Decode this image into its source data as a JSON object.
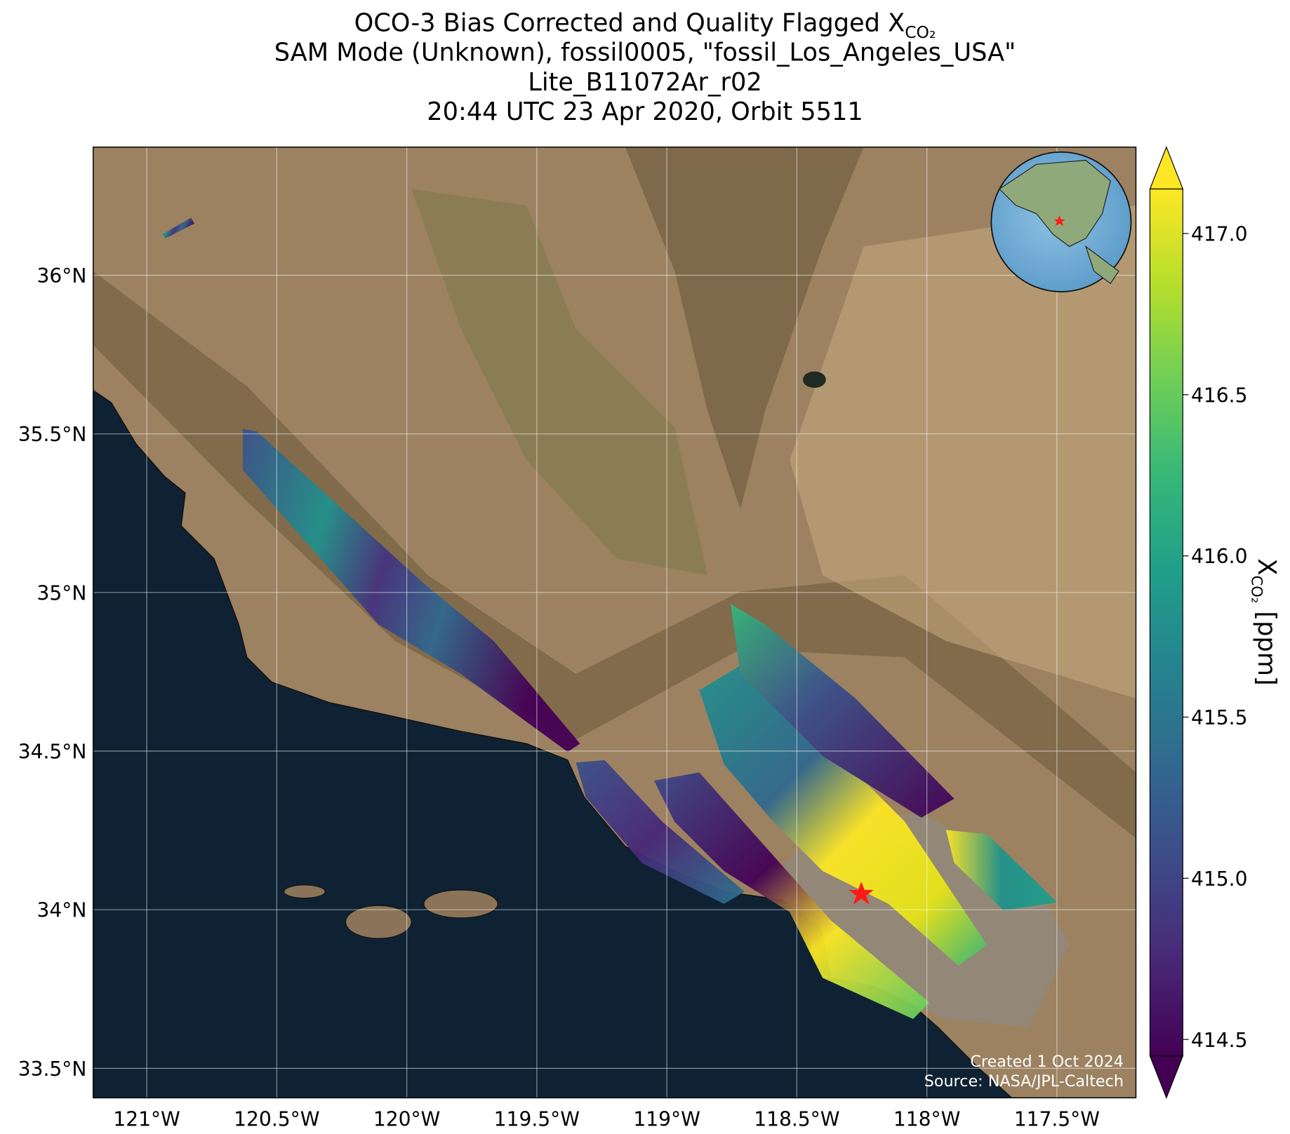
{
  "chart_data": {
    "type": "map",
    "title_lines": [
      {
        "text": "OCO-3 Bias Corrected and Quality Flagged X",
        "subscript": "CO₂"
      },
      {
        "text": "SAM Mode (Unknown), fossil0005, \"fossil_Los_Angeles_USA\""
      },
      {
        "text": "Lite_B11072Ar_r02"
      },
      {
        "text": "20:44 UTC 23 Apr 2020, Orbit 5511"
      }
    ],
    "xlim": [
      -121.206,
      -117.196
    ],
    "ylim": [
      33.407,
      36.404
    ],
    "xticks": [
      {
        "value": -121,
        "label": "121°W"
      },
      {
        "value": -120.5,
        "label": "120.5°W"
      },
      {
        "value": -120,
        "label": "120°W"
      },
      {
        "value": -119.5,
        "label": "119.5°W"
      },
      {
        "value": -119,
        "label": "119°W"
      },
      {
        "value": -118.5,
        "label": "118.5°W"
      },
      {
        "value": -118,
        "label": "118°W"
      },
      {
        "value": -117.5,
        "label": "117.5°W"
      }
    ],
    "yticks": [
      {
        "value": 33.5,
        "label": "33.5°N"
      },
      {
        "value": 34,
        "label": "34°N"
      },
      {
        "value": 34.5,
        "label": "34.5°N"
      },
      {
        "value": 35,
        "label": "35°N"
      },
      {
        "value": 35.5,
        "label": "35.5°N"
      },
      {
        "value": 36,
        "label": "36°N"
      }
    ],
    "grid": true,
    "colorbar": {
      "colormap": "viridis",
      "label": "X",
      "label_subscript": "CO₂",
      "label_unit": "[ppm]",
      "clim": [
        414.449,
        417.138
      ],
      "ticks": [
        {
          "value": 414.5,
          "label": "414.5"
        },
        {
          "value": 415,
          "label": "415.0"
        },
        {
          "value": 415.5,
          "label": "415.5"
        },
        {
          "value": 416,
          "label": "416.0"
        },
        {
          "value": 416.5,
          "label": "416.5"
        },
        {
          "value": 417,
          "label": "417.0"
        }
      ]
    },
    "credits": [
      "Created 1 Oct 2024",
      "Source: NASA/JPL-Caltech"
    ]
  }
}
